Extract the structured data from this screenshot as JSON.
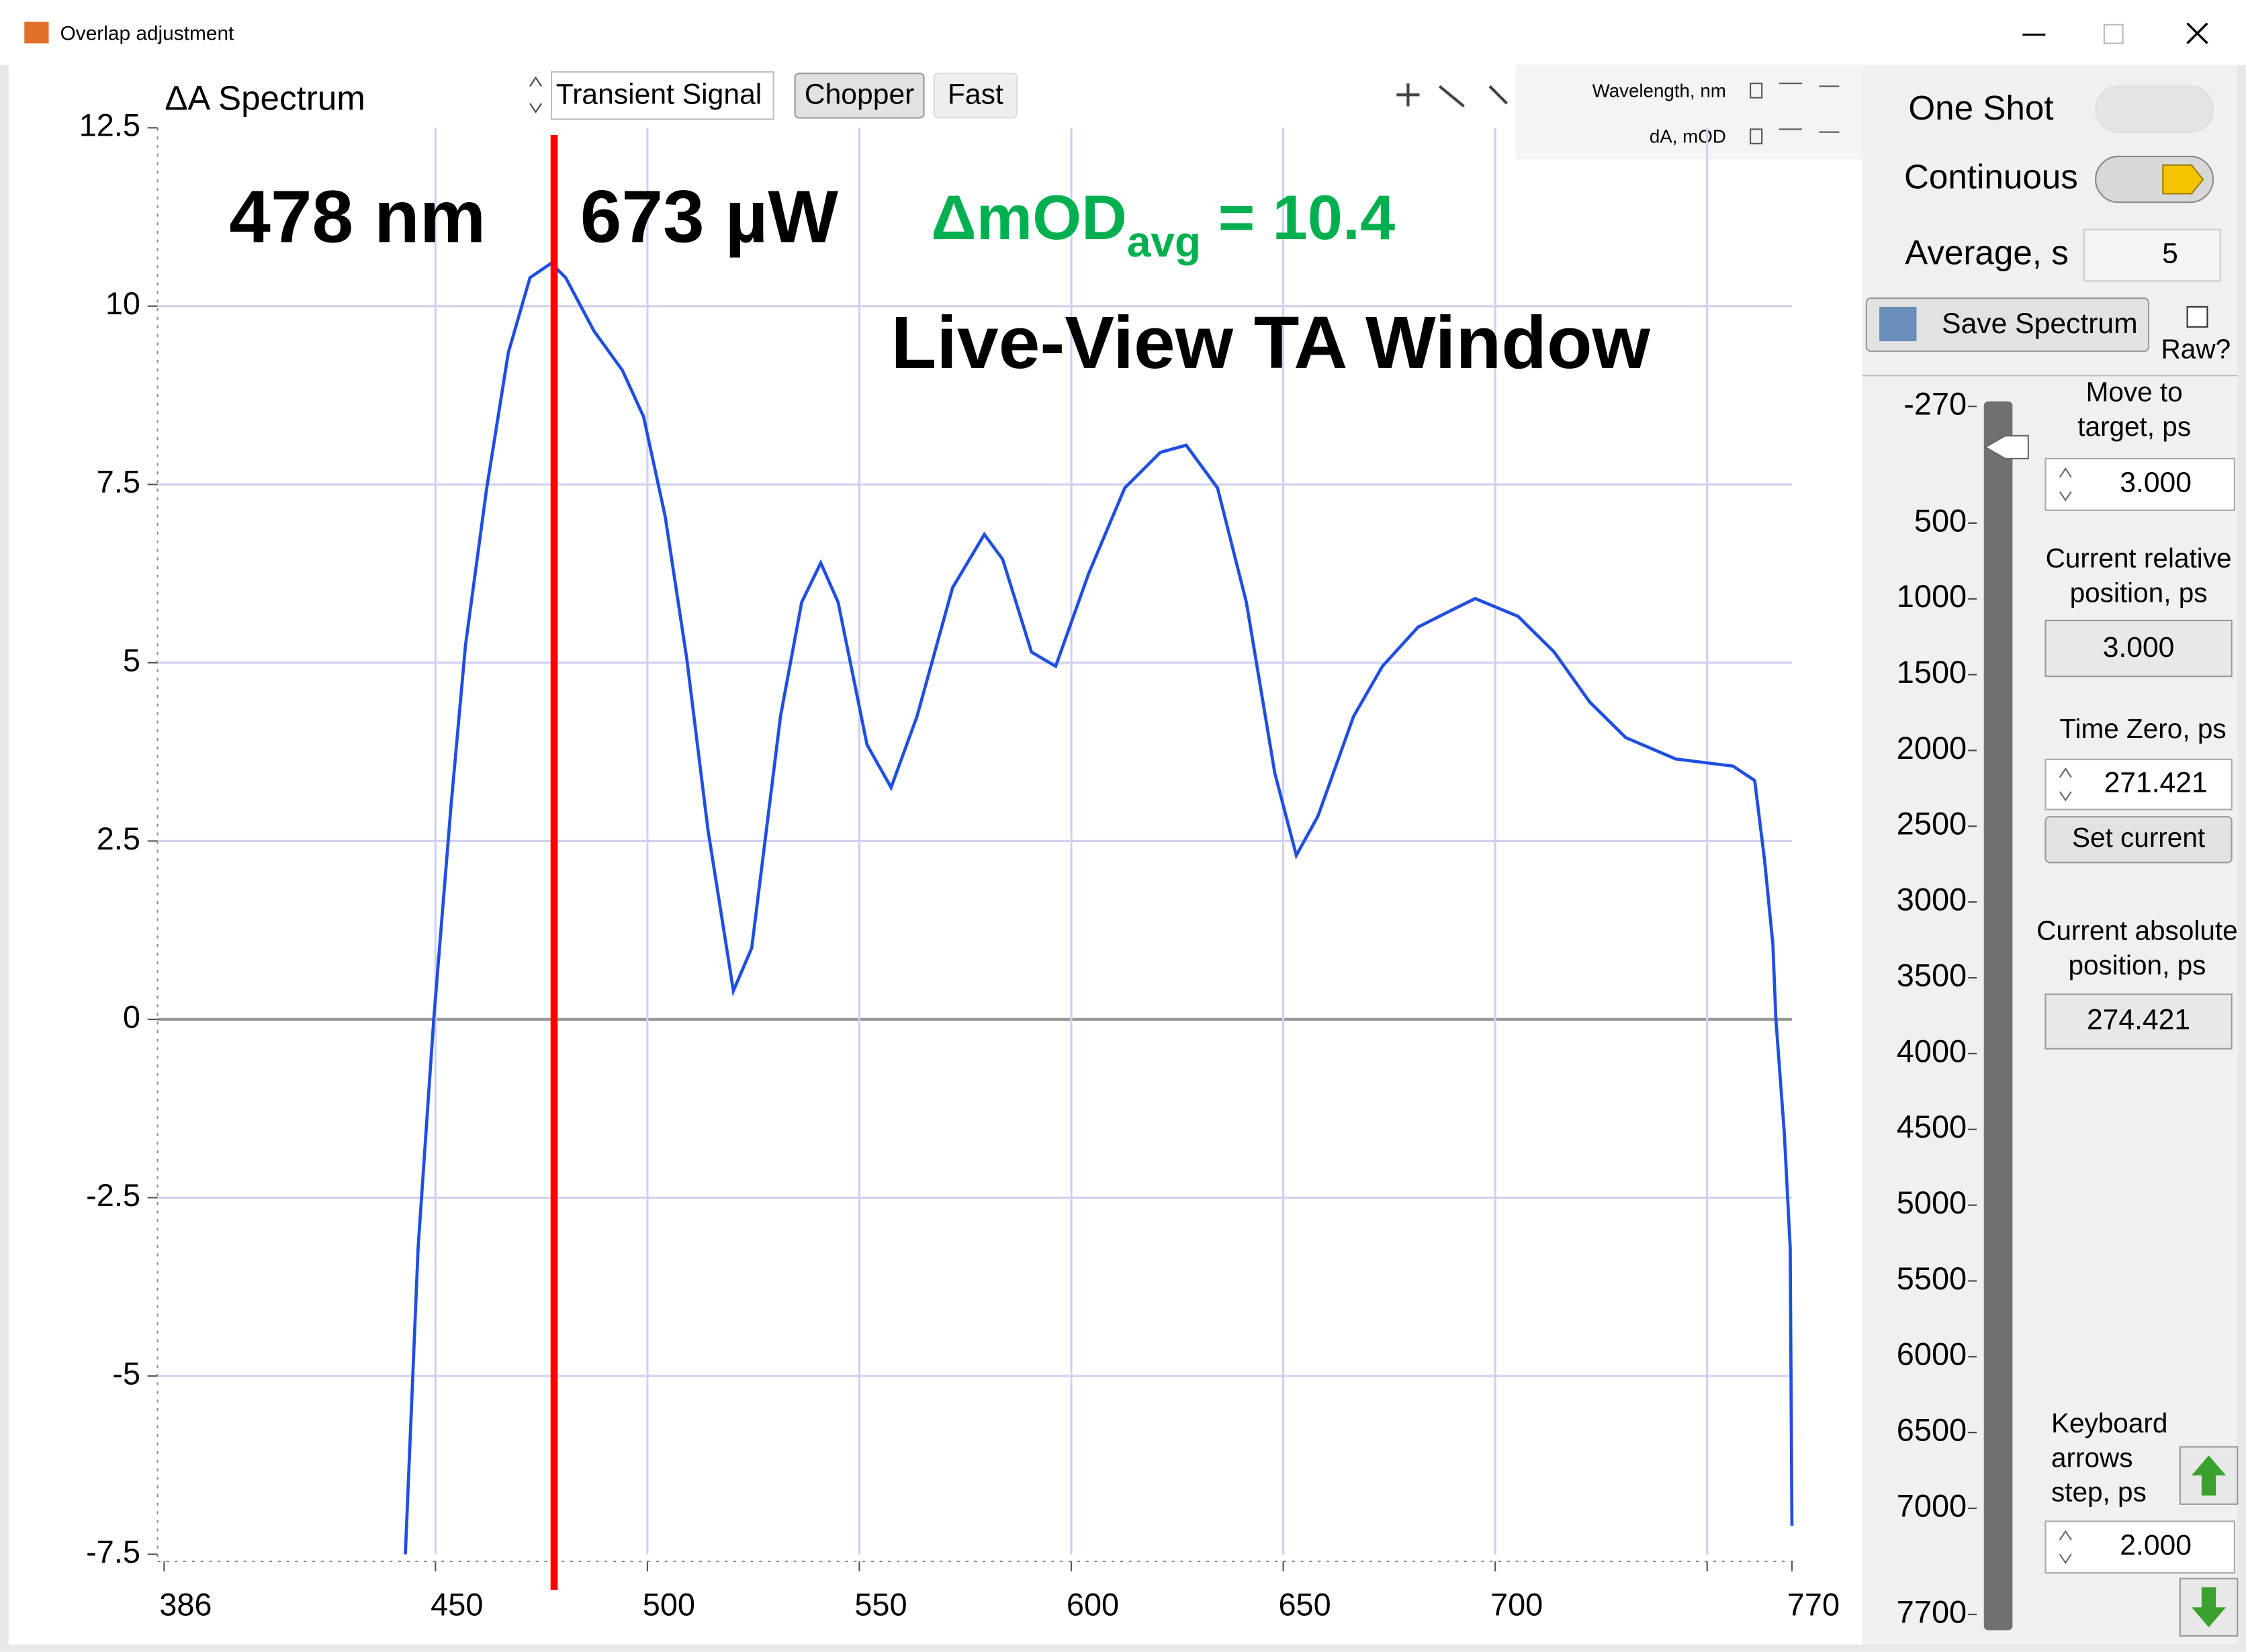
{
  "window": {
    "title": "Overlap adjustment"
  },
  "toolbar": {
    "spectrum_mode": "ΔA Spectrum",
    "signal": "Transient Signal",
    "chopper": "Chopper",
    "fast": "Fast",
    "x_readout": "Wavelength, nm",
    "y_readout": "dA, mOD"
  },
  "chart_data": {
    "type": "line",
    "title": "Live-View TA Window",
    "x": [
      442.9,
      445.9,
      449.6,
      453.7,
      457.1,
      462.1,
      467.2,
      472.3,
      477.3,
      480.7,
      487.4,
      494.1,
      499.1,
      504.2,
      509.3,
      514.3,
      520.3,
      524.6,
      531.4,
      536.4,
      540.9,
      545.0,
      551.8,
      557.5,
      563.6,
      572.0,
      579.5,
      583.8,
      590.6,
      596.3,
      604.1,
      612.6,
      621.0,
      627.1,
      634.5,
      641.3,
      648.0,
      653.1,
      658.2,
      666.6,
      673.4,
      681.8,
      690.2,
      695.3,
      705.4,
      713.9,
      722.3,
      730.8,
      742.6,
      756.1,
      761.2,
      763.5,
      765.5,
      766.2,
      768.2,
      769.6,
      770.0
    ],
    "values": [
      -7.5,
      -3.2,
      0,
      3.0,
      5.25,
      7.45,
      9.35,
      10.4,
      10.6,
      10.4,
      9.65,
      9.1,
      8.45,
      7.05,
      5.05,
      2.65,
      0.4,
      1.0,
      4.25,
      5.85,
      6.4,
      5.85,
      3.85,
      3.25,
      4.25,
      6.05,
      6.8,
      6.45,
      5.15,
      4.95,
      6.25,
      7.45,
      7.95,
      8.05,
      7.45,
      5.85,
      3.45,
      2.3,
      2.85,
      4.25,
      4.95,
      5.5,
      5.75,
      5.9,
      5.65,
      5.15,
      4.45,
      3.95,
      3.65,
      3.55,
      3.35,
      2.25,
      1.05,
      0,
      -1.6,
      -3.2,
      -7.1
    ],
    "color": "#1f4fe0",
    "xlim": [
      386,
      770
    ],
    "xticks": [
      386,
      450,
      500,
      550,
      600,
      650,
      700,
      {
        "value": 750,
        "label": null
      },
      770
    ],
    "ylim": [
      -7.5,
      12.5
    ],
    "yticks": [
      12.5,
      10,
      7.5,
      5,
      2.5,
      0,
      -2.5,
      -5,
      -7.5
    ],
    "grid": true,
    "annotations": {
      "wavelength": {
        "value": 478,
        "label": "478 nm",
        "color": "#ff0000"
      },
      "power": {
        "label": "673 µW",
        "color": "#ffc000"
      },
      "signal": {
        "label": "ΔmOD",
        "subscript": "avg",
        "value_text": "= 10.4",
        "color": "#00b050"
      }
    }
  },
  "controls": {
    "one_shot": "One Shot",
    "continuous": "Continuous",
    "average_label": "Average, s",
    "average_value": "5",
    "save": "Save Spectrum",
    "raw": "Raw?",
    "move_label": [
      "Move to",
      "target, ps"
    ],
    "move_value": "3.000",
    "relative_label": [
      "Current relative",
      "position, ps"
    ],
    "relative_value": "3.000",
    "zero_label": "Time Zero, ps",
    "zero_value": "271.421",
    "set_current": "Set current",
    "absolute_label": [
      "Current absolute",
      "position, ps"
    ],
    "absolute_value": "274.421",
    "step_label": [
      "Keyboard",
      "arrows",
      "step, ps"
    ],
    "step_value": "2.000"
  },
  "slider": {
    "ylim": [
      -270,
      7700
    ],
    "yticks": [
      -270,
      500,
      1000,
      1500,
      2000,
      2500,
      3000,
      3500,
      4000,
      4500,
      5000,
      5500,
      6000,
      6500,
      7000,
      7700
    ]
  }
}
